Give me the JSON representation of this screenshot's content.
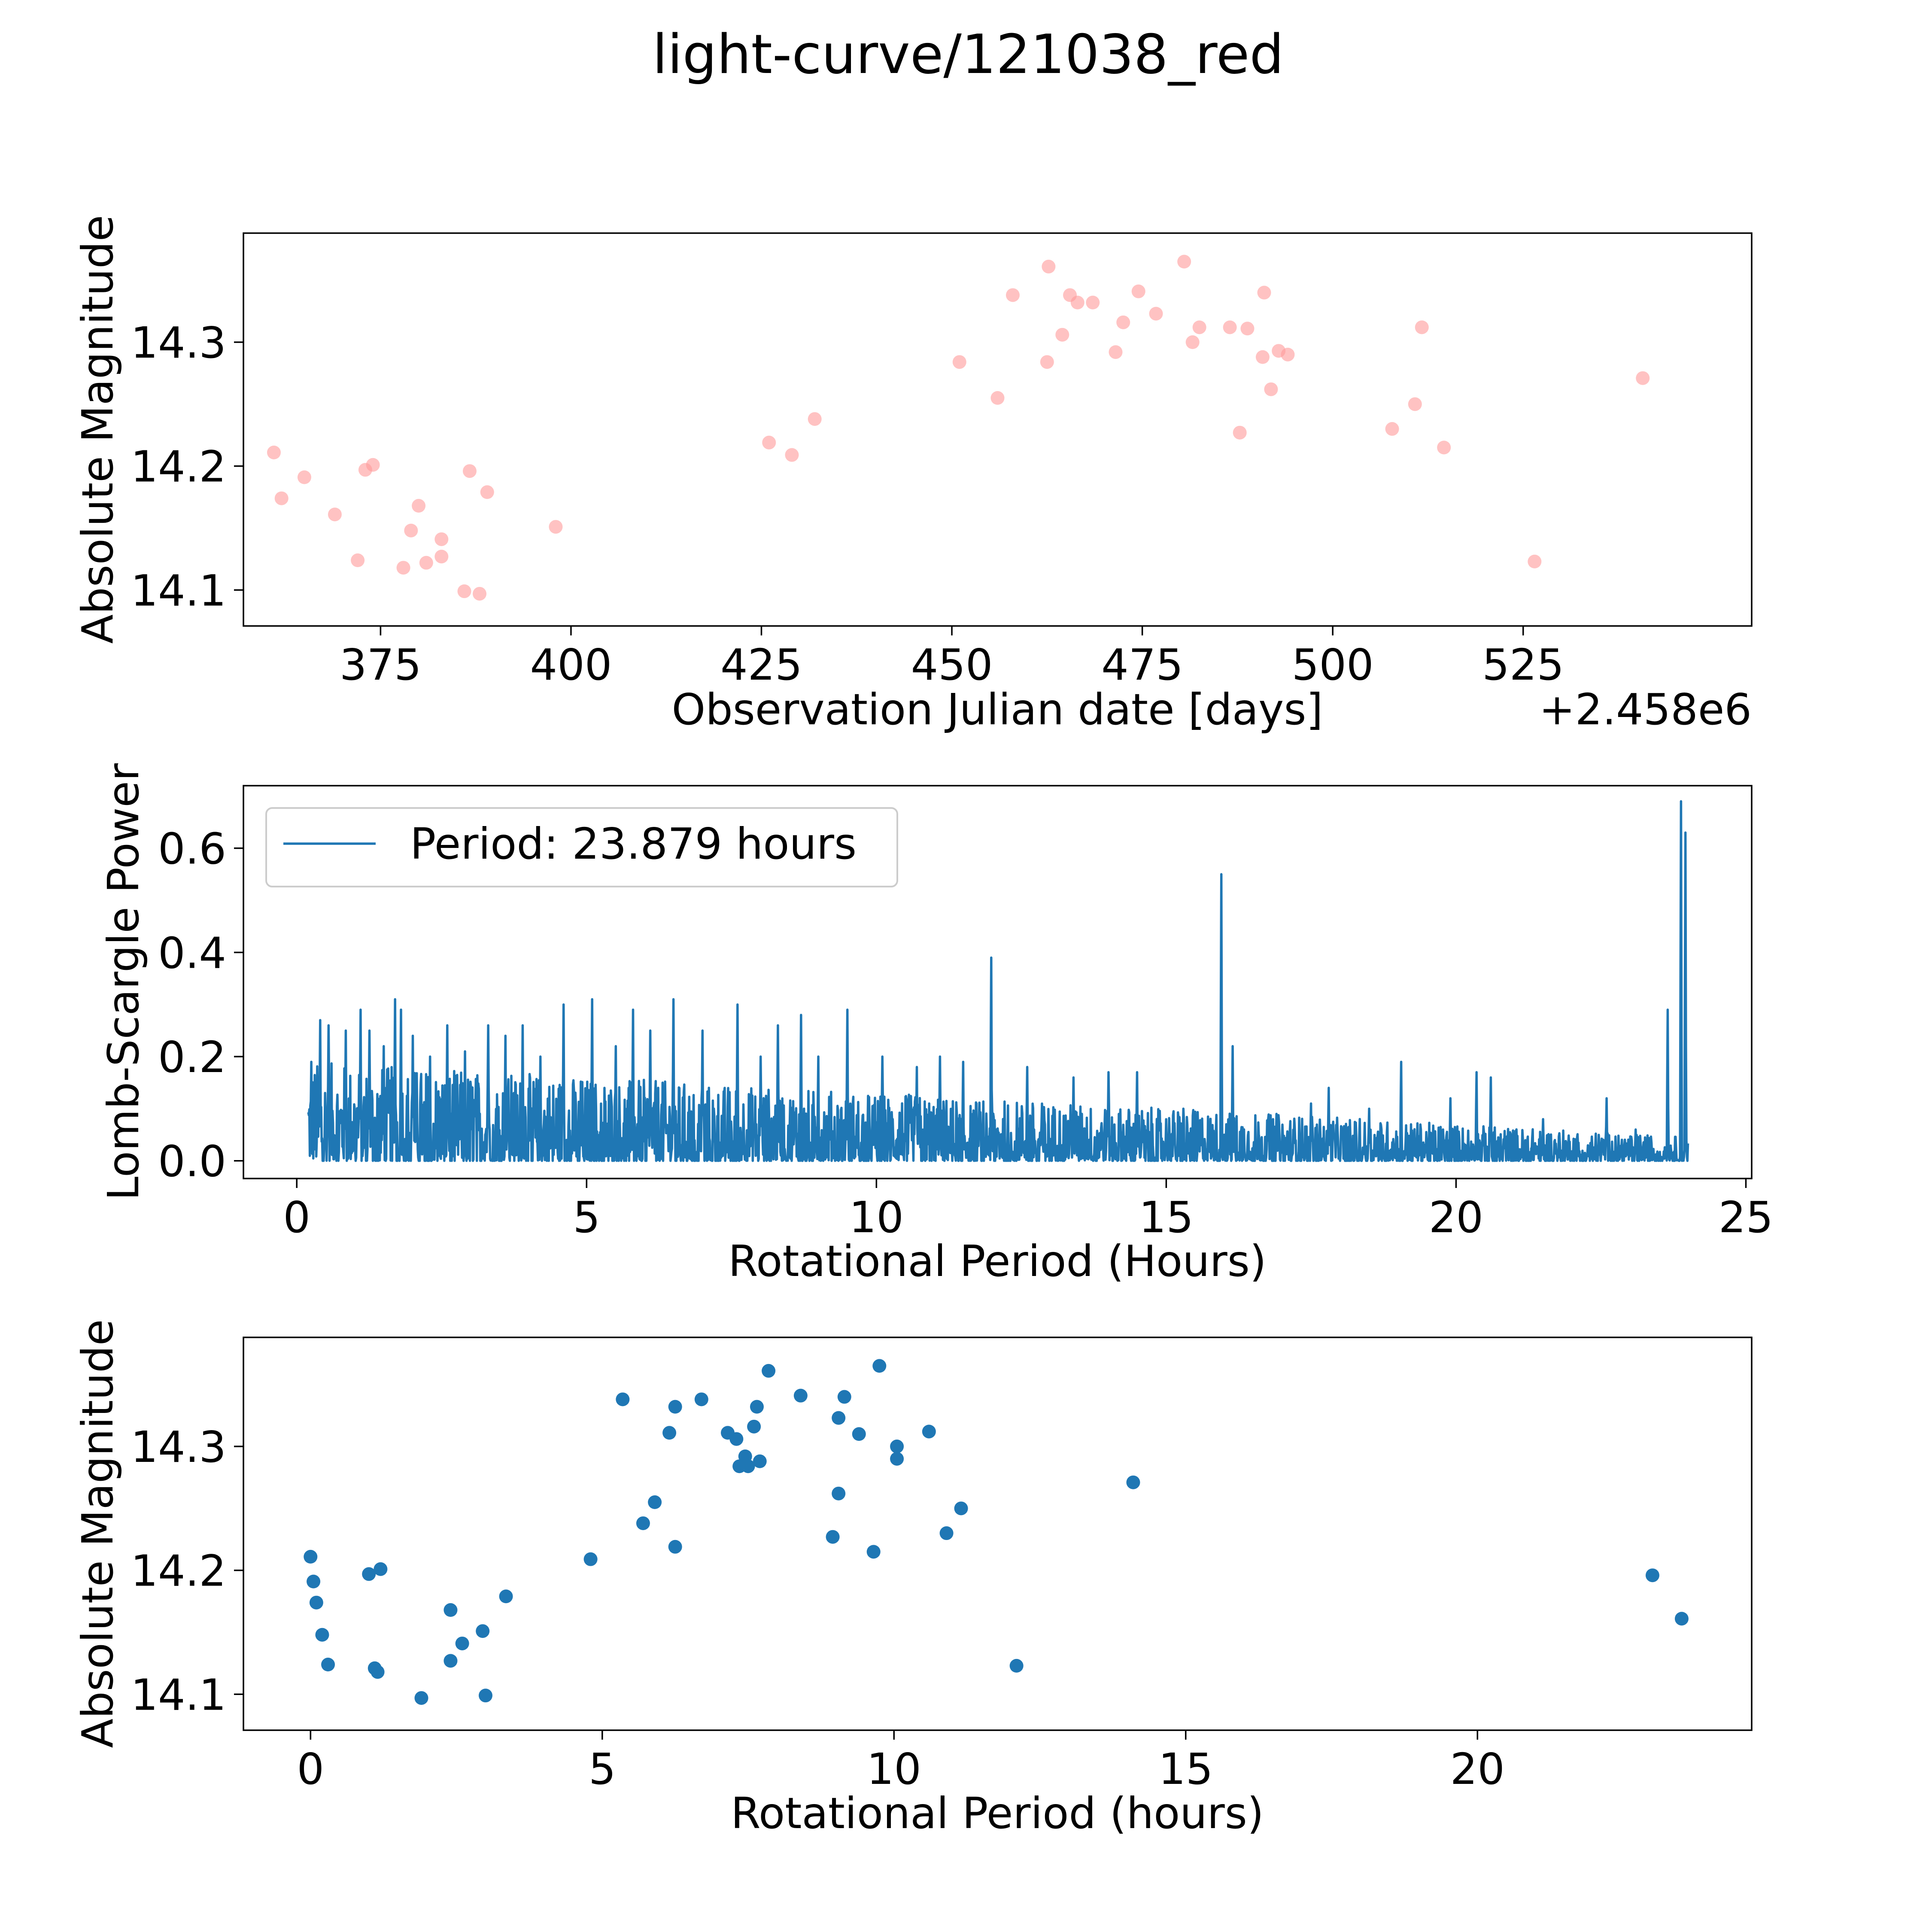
{
  "figure": {
    "title": "light-curve/121038_red"
  },
  "chart_data": [
    {
      "type": "scatter",
      "title": "",
      "xlabel": "Observation Julian date [days]",
      "ylabel": "Absolute Magnitude",
      "x_offset_label": "+2.458e6",
      "xlim": [
        357,
        555
      ],
      "ylim": [
        14.071,
        14.388
      ],
      "xticks": [
        375,
        400,
        425,
        450,
        475,
        500,
        525
      ],
      "xtick_labels": [
        "375",
        "400",
        "425",
        "450",
        "475",
        "500",
        "525"
      ],
      "yticks": [
        14.1,
        14.2,
        14.3
      ],
      "ytick_labels": [
        "14.1",
        "14.2",
        "14.3"
      ],
      "marker_color": "#ff9a9a",
      "marker_alpha": 0.6,
      "points": [
        [
          361.0,
          14.211
        ],
        [
          362.0,
          14.174
        ],
        [
          365.0,
          14.191
        ],
        [
          369.0,
          14.161
        ],
        [
          372.0,
          14.124
        ],
        [
          373.0,
          14.197
        ],
        [
          374.0,
          14.201
        ],
        [
          378.0,
          14.118
        ],
        [
          379.0,
          14.148
        ],
        [
          380.0,
          14.168
        ],
        [
          381.0,
          14.122
        ],
        [
          383.0,
          14.141
        ],
        [
          383.0,
          14.127
        ],
        [
          386.0,
          14.099
        ],
        [
          386.7,
          14.196
        ],
        [
          388.0,
          14.097
        ],
        [
          389.0,
          14.179
        ],
        [
          398.0,
          14.151
        ],
        [
          426.0,
          14.219
        ],
        [
          429.0,
          14.209
        ],
        [
          432.0,
          14.238
        ],
        [
          451.0,
          14.284
        ],
        [
          456.0,
          14.255
        ],
        [
          458.0,
          14.338
        ],
        [
          462.5,
          14.284
        ],
        [
          462.7,
          14.361
        ],
        [
          464.5,
          14.306
        ],
        [
          465.5,
          14.338
        ],
        [
          466.5,
          14.332
        ],
        [
          468.5,
          14.332
        ],
        [
          471.5,
          14.292
        ],
        [
          472.5,
          14.316
        ],
        [
          474.5,
          14.341
        ],
        [
          476.8,
          14.323
        ],
        [
          480.5,
          14.365
        ],
        [
          481.6,
          14.3
        ],
        [
          482.5,
          14.312
        ],
        [
          486.5,
          14.312
        ],
        [
          487.8,
          14.227
        ],
        [
          488.8,
          14.311
        ],
        [
          490.8,
          14.288
        ],
        [
          491.0,
          14.34
        ],
        [
          491.9,
          14.262
        ],
        [
          492.9,
          14.293
        ],
        [
          494.1,
          14.29
        ],
        [
          507.8,
          14.23
        ],
        [
          510.8,
          14.25
        ],
        [
          511.7,
          14.312
        ],
        [
          514.6,
          14.215
        ],
        [
          526.5,
          14.123
        ],
        [
          540.7,
          14.271
        ]
      ]
    },
    {
      "type": "line",
      "title": "",
      "xlabel": "Rotational Period (Hours)",
      "ylabel": "Lomb-Scargle Power",
      "xlim": [
        -0.92,
        25.1
      ],
      "ylim": [
        -0.034,
        0.72
      ],
      "xticks": [
        0,
        5,
        10,
        15,
        20,
        25
      ],
      "xtick_labels": [
        "0",
        "5",
        "10",
        "15",
        "20",
        "25"
      ],
      "yticks": [
        0.0,
        0.2,
        0.4,
        0.6
      ],
      "ytick_labels": [
        "0.0",
        "0.2",
        "0.4",
        "0.6"
      ],
      "line_color": "#1f77b4",
      "legend": {
        "label": "Period: 23.879 hours",
        "location": "upper-left"
      },
      "x_range": [
        0.2,
        24.0
      ],
      "peaks": [
        [
          0.25,
          0.19
        ],
        [
          0.4,
          0.27
        ],
        [
          0.55,
          0.26
        ],
        [
          0.85,
          0.25
        ],
        [
          1.1,
          0.29
        ],
        [
          1.25,
          0.25
        ],
        [
          1.5,
          0.22
        ],
        [
          1.7,
          0.31
        ],
        [
          1.8,
          0.29
        ],
        [
          2.0,
          0.24
        ],
        [
          2.3,
          0.2
        ],
        [
          2.6,
          0.26
        ],
        [
          2.9,
          0.21
        ],
        [
          3.3,
          0.26
        ],
        [
          3.6,
          0.24
        ],
        [
          3.9,
          0.26
        ],
        [
          4.2,
          0.2
        ],
        [
          4.6,
          0.3
        ],
        [
          5.1,
          0.31
        ],
        [
          5.5,
          0.22
        ],
        [
          5.8,
          0.29
        ],
        [
          6.1,
          0.25
        ],
        [
          6.5,
          0.31
        ],
        [
          7.0,
          0.25
        ],
        [
          7.6,
          0.3
        ],
        [
          8.0,
          0.2
        ],
        [
          8.3,
          0.26
        ],
        [
          8.7,
          0.28
        ],
        [
          9.0,
          0.2
        ],
        [
          9.5,
          0.29
        ],
        [
          10.1,
          0.2
        ],
        [
          10.7,
          0.18
        ],
        [
          11.1,
          0.2
        ],
        [
          11.5,
          0.19
        ],
        [
          11.98,
          0.39
        ],
        [
          12.6,
          0.18
        ],
        [
          13.4,
          0.16
        ],
        [
          14.0,
          0.17
        ],
        [
          14.5,
          0.17
        ],
        [
          15.3,
          0.1
        ],
        [
          15.95,
          0.55
        ],
        [
          16.15,
          0.22
        ],
        [
          16.9,
          0.09
        ],
        [
          17.5,
          0.11
        ],
        [
          17.8,
          0.14
        ],
        [
          18.5,
          0.1
        ],
        [
          19.05,
          0.19
        ],
        [
          19.9,
          0.12
        ],
        [
          20.35,
          0.17
        ],
        [
          20.6,
          0.16
        ],
        [
          21.5,
          0.08
        ],
        [
          22.6,
          0.12
        ],
        [
          23.1,
          0.06
        ],
        [
          23.65,
          0.29
        ],
        [
          23.879,
          0.69
        ],
        [
          23.96,
          0.63
        ]
      ]
    },
    {
      "type": "scatter",
      "title": "",
      "xlabel": "Rotational Period (hours)",
      "ylabel": "Absolute Magnitude",
      "xlim": [
        -1.15,
        24.7
      ],
      "ylim": [
        14.071,
        14.388
      ],
      "xticks": [
        0,
        5,
        10,
        15,
        20
      ],
      "xtick_labels": [
        "0",
        "5",
        "10",
        "15",
        "20"
      ],
      "yticks": [
        14.1,
        14.2,
        14.3
      ],
      "ytick_labels": [
        "14.1",
        "14.2",
        "14.3"
      ],
      "marker_color": "#1f77b4",
      "points": [
        [
          0.0,
          14.211
        ],
        [
          0.05,
          14.191
        ],
        [
          0.1,
          14.174
        ],
        [
          0.2,
          14.148
        ],
        [
          0.3,
          14.124
        ],
        [
          1.0,
          14.197
        ],
        [
          1.1,
          14.121
        ],
        [
          1.15,
          14.118
        ],
        [
          1.2,
          14.201
        ],
        [
          1.9,
          14.097
        ],
        [
          2.4,
          14.168
        ],
        [
          2.4,
          14.127
        ],
        [
          2.6,
          14.141
        ],
        [
          2.95,
          14.151
        ],
        [
          3.0,
          14.099
        ],
        [
          3.35,
          14.179
        ],
        [
          4.8,
          14.209
        ],
        [
          5.35,
          14.338
        ],
        [
          5.7,
          14.238
        ],
        [
          5.9,
          14.255
        ],
        [
          6.15,
          14.311
        ],
        [
          6.25,
          14.332
        ],
        [
          6.25,
          14.219
        ],
        [
          6.7,
          14.338
        ],
        [
          7.15,
          14.311
        ],
        [
          7.3,
          14.306
        ],
        [
          7.35,
          14.284
        ],
        [
          7.45,
          14.292
        ],
        [
          7.5,
          14.284
        ],
        [
          7.6,
          14.316
        ],
        [
          7.65,
          14.332
        ],
        [
          7.7,
          14.288
        ],
        [
          7.85,
          14.361
        ],
        [
          8.4,
          14.341
        ],
        [
          8.95,
          14.227
        ],
        [
          9.05,
          14.323
        ],
        [
          9.05,
          14.262
        ],
        [
          9.15,
          14.34
        ],
        [
          9.4,
          14.31
        ],
        [
          9.65,
          14.215
        ],
        [
          9.75,
          14.365
        ],
        [
          10.05,
          14.3
        ],
        [
          10.05,
          14.29
        ],
        [
          10.6,
          14.312
        ],
        [
          10.9,
          14.23
        ],
        [
          11.15,
          14.25
        ],
        [
          12.1,
          14.123
        ],
        [
          14.1,
          14.271
        ],
        [
          23.0,
          14.196
        ],
        [
          23.5,
          14.161
        ]
      ]
    }
  ]
}
